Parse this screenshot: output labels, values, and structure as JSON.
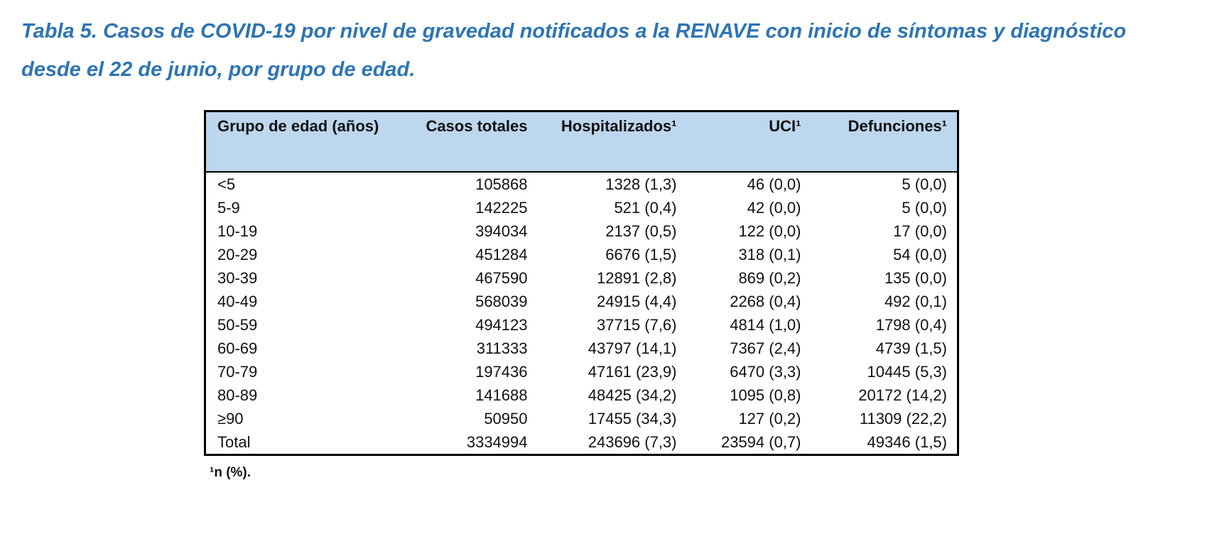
{
  "document": {
    "title": "Tabla 5. Casos de COVID-19 por nivel de gravedad notificados a la RENAVE con inicio de síntomas y diagnóstico desde el 22 de junio, por grupo de edad.",
    "footnote": "¹n (%)."
  },
  "colors": {
    "title_blue": "#2E74B5",
    "header_background": "#BDD7EE",
    "table_border": "#000000"
  },
  "table": {
    "headers": [
      "Grupo de edad (años)",
      "Casos totales",
      "Hospitalizados¹",
      "UCI¹",
      "Defunciones¹"
    ],
    "rows": [
      [
        "<5",
        "105868",
        "1328 (1,3)",
        "46 (0,0)",
        "5 (0,0)"
      ],
      [
        "5-9",
        "142225",
        "521 (0,4)",
        "42 (0,0)",
        "5 (0,0)"
      ],
      [
        "10-19",
        "394034",
        "2137 (0,5)",
        "122 (0,0)",
        "17 (0,0)"
      ],
      [
        "20-29",
        "451284",
        "6676 (1,5)",
        "318 (0,1)",
        "54 (0,0)"
      ],
      [
        "30-39",
        "467590",
        "12891 (2,8)",
        "869 (0,2)",
        "135 (0,0)"
      ],
      [
        "40-49",
        "568039",
        "24915 (4,4)",
        "2268 (0,4)",
        "492 (0,1)"
      ],
      [
        "50-59",
        "494123",
        "37715 (7,6)",
        "4814 (1,0)",
        "1798 (0,4)"
      ],
      [
        "60-69",
        "311333",
        "43797 (14,1)",
        "7367 (2,4)",
        "4739 (1,5)"
      ],
      [
        "70-79",
        "197436",
        "47161 (23,9)",
        "6470 (3,3)",
        "10445 (5,3)"
      ],
      [
        "80-89",
        "141688",
        "48425 (34,2)",
        "1095 (0,8)",
        "20172 (14,2)"
      ],
      [
        "≥90",
        "50950",
        "17455 (34,3)",
        "127 (0,2)",
        "11309 (22,2)"
      ],
      [
        "Total",
        "3334994",
        "243696 (7,3)",
        "23594 (0,7)",
        "49346 (1,5)"
      ]
    ]
  }
}
